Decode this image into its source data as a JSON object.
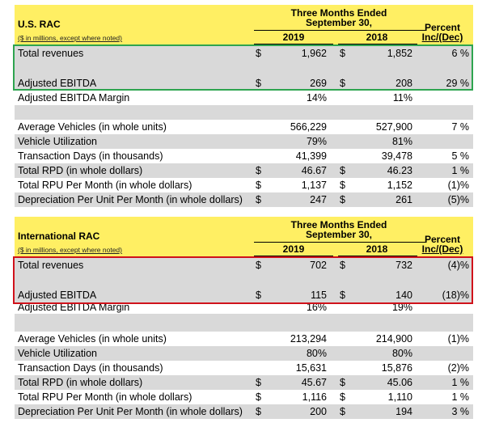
{
  "us": {
    "title": "U.S. RAC",
    "note": "($ in millions, except where noted)",
    "period": "Three Months Ended",
    "period2": "September 30,",
    "col_2019": "2019",
    "col_2018": "2018",
    "pct_header": "Percent",
    "pct_header2": "Inc/(Dec)",
    "rows": [
      {
        "label": "Total revenues",
        "c1": "$",
        "v2019": "1,962",
        "c2": "$",
        "v2018": "1,852",
        "pct": "6 %"
      },
      {
        "label": "Adjusted EBITDA",
        "c1": "$",
        "v2019": "269",
        "c2": "$",
        "v2018": "208",
        "pct": "29 %"
      },
      {
        "label": "Adjusted EBITDA Margin",
        "c1": "",
        "v2019": "14%",
        "c2": "",
        "v2018": "11%",
        "pct": ""
      },
      {
        "label": "Average Vehicles (in whole units)",
        "c1": "",
        "v2019": "566,229",
        "c2": "",
        "v2018": "527,900",
        "pct": "7 %"
      },
      {
        "label": "Vehicle Utilization",
        "c1": "",
        "v2019": "79%",
        "c2": "",
        "v2018": "81%",
        "pct": ""
      },
      {
        "label": "Transaction Days (in thousands)",
        "c1": "",
        "v2019": "41,399",
        "c2": "",
        "v2018": "39,478",
        "pct": "5 %"
      },
      {
        "label": "Total RPD (in whole dollars)",
        "c1": "$",
        "v2019": "46.67",
        "c2": "$",
        "v2018": "46.23",
        "pct": "1 %"
      },
      {
        "label": "Total RPU Per Month (in whole dollars)",
        "c1": "$",
        "v2019": "1,137",
        "c2": "$",
        "v2018": "1,152",
        "pct": "(1)%"
      },
      {
        "label": "Depreciation Per Unit Per Month (in whole dollars)",
        "c1": "$",
        "v2019": "247",
        "c2": "$",
        "v2018": "261",
        "pct": "(5)%"
      }
    ]
  },
  "intl": {
    "title": "International RAC",
    "note": "($ in millions, except where noted)",
    "period": "Three Months Ended",
    "period2": "September 30,",
    "col_2019": "2019",
    "col_2018": "2018",
    "pct_header": "Percent",
    "pct_header2": "Inc/(Dec)",
    "rows": [
      {
        "label": "Total revenues",
        "c1": "$",
        "v2019": "702",
        "c2": "$",
        "v2018": "732",
        "pct": "(4)%"
      },
      {
        "label": "Adjusted EBITDA",
        "c1": "$",
        "v2019": "115",
        "c2": "$",
        "v2018": "140",
        "pct": "(18)%"
      },
      {
        "label": "Adjusted EBITDA Margin",
        "c1": "",
        "v2019": "16%",
        "c2": "",
        "v2018": "19%",
        "pct": ""
      },
      {
        "label": "Average Vehicles (in whole units)",
        "c1": "",
        "v2019": "213,294",
        "c2": "",
        "v2018": "214,900",
        "pct": "(1)%"
      },
      {
        "label": "Vehicle Utilization",
        "c1": "",
        "v2019": "80%",
        "c2": "",
        "v2018": "80%",
        "pct": ""
      },
      {
        "label": "Transaction Days (in thousands)",
        "c1": "",
        "v2019": "15,631",
        "c2": "",
        "v2018": "15,876",
        "pct": "(2)%"
      },
      {
        "label": "Total RPD (in whole dollars)",
        "c1": "$",
        "v2019": "45.67",
        "c2": "$",
        "v2018": "45.06",
        "pct": "1 %"
      },
      {
        "label": "Total RPU Per Month (in whole dollars)",
        "c1": "$",
        "v2019": "1,116",
        "c2": "$",
        "v2018": "1,110",
        "pct": "1 %"
      },
      {
        "label": "Depreciation Per Unit Per Month (in whole dollars)",
        "c1": "$",
        "v2019": "200",
        "c2": "$",
        "v2018": "194",
        "pct": "3 %"
      }
    ]
  },
  "highlights": {
    "green": "#2ea44f",
    "red": "#d0121b",
    "header_yellow": "#ffef63",
    "row_gray": "#d9d9d9"
  }
}
